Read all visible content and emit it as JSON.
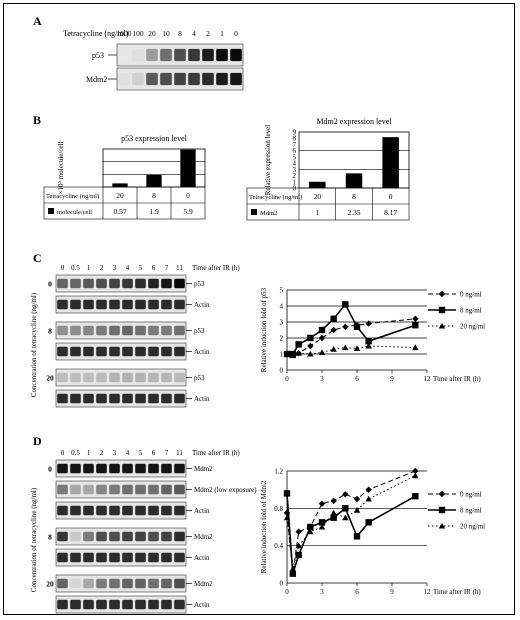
{
  "panels": {
    "A": "A",
    "B": "B",
    "C": "C",
    "D": "D"
  },
  "panelA": {
    "row_label": "Tetracycline (ng/ml)",
    "concentrations": [
      "1000",
      "100",
      "20",
      "10",
      "8",
      "4",
      "2",
      "1",
      "0"
    ],
    "blots": [
      "p53",
      "Mdm2"
    ],
    "band_intensity": {
      "p53": [
        0.02,
        0.05,
        0.35,
        0.55,
        0.7,
        0.8,
        0.92,
        1.0,
        1.0
      ],
      "Mdm2": [
        0.05,
        0.12,
        0.65,
        0.7,
        0.75,
        0.78,
        0.85,
        0.92,
        0.95
      ]
    }
  },
  "panelC": {
    "lane_labels": [
      "0",
      "0.5",
      "1",
      "2",
      "3",
      "4",
      "5",
      "6",
      "7",
      "11"
    ],
    "time_label": "Time after IR (h)",
    "side_label": "Concentration of tetracycline (ng/ml)",
    "groups": [
      {
        "conc": "0",
        "blots": [
          {
            "label": "p53",
            "i": [
              0.6,
              0.6,
              0.65,
              0.7,
              0.75,
              0.8,
              0.85,
              0.9,
              0.95,
              1.0
            ]
          },
          {
            "label": "Actin",
            "i": [
              0.85,
              0.85,
              0.85,
              0.85,
              0.85,
              0.85,
              0.85,
              0.85,
              0.85,
              0.85
            ]
          }
        ]
      },
      {
        "conc": "8",
        "blots": [
          {
            "label": "p53",
            "i": [
              0.4,
              0.42,
              0.45,
              0.5,
              0.55,
              0.6,
              0.55,
              0.5,
              0.5,
              0.55
            ]
          },
          {
            "label": "Actin",
            "i": [
              0.85,
              0.85,
              0.85,
              0.85,
              0.85,
              0.85,
              0.85,
              0.85,
              0.85,
              0.85
            ]
          }
        ]
      },
      {
        "conc": "20",
        "blots": [
          {
            "label": "p53",
            "i": [
              0.2,
              0.2,
              0.2,
              0.22,
              0.24,
              0.26,
              0.25,
              0.24,
              0.24,
              0.22
            ]
          },
          {
            "label": "Actin",
            "i": [
              0.85,
              0.85,
              0.85,
              0.85,
              0.85,
              0.85,
              0.85,
              0.85,
              0.85,
              0.85
            ]
          }
        ]
      }
    ]
  },
  "panelD": {
    "lane_labels": [
      "0",
      "0.5",
      "1",
      "2",
      "3",
      "4",
      "5",
      "6",
      "7",
      "11"
    ],
    "time_label": "Time after IR (h)",
    "side_label": "Concentration of tetracycline (ng/ml)",
    "groups": [
      {
        "conc": "0",
        "blots": [
          {
            "label": "Mdm2",
            "i": [
              0.95,
              0.95,
              0.95,
              0.95,
              0.95,
              0.95,
              0.95,
              0.95,
              0.95,
              0.95
            ]
          },
          {
            "label": "Mdm2 (low exposure)",
            "i": [
              0.5,
              0.3,
              0.3,
              0.45,
              0.5,
              0.55,
              0.55,
              0.55,
              0.6,
              0.65
            ]
          },
          {
            "label": "Actin",
            "i": [
              0.85,
              0.85,
              0.85,
              0.85,
              0.85,
              0.85,
              0.85,
              0.85,
              0.85,
              0.85
            ]
          }
        ]
      },
      {
        "conc": "8",
        "blots": [
          {
            "label": "Mdm2",
            "i": [
              0.8,
              0.15,
              0.5,
              0.7,
              0.7,
              0.75,
              0.75,
              0.7,
              0.75,
              0.85
            ]
          },
          {
            "label": "Actin",
            "i": [
              0.85,
              0.85,
              0.85,
              0.85,
              0.85,
              0.85,
              0.85,
              0.85,
              0.85,
              0.85
            ]
          }
        ]
      },
      {
        "conc": "20",
        "blots": [
          {
            "label": "Mdm2",
            "i": [
              0.6,
              0.1,
              0.3,
              0.5,
              0.55,
              0.6,
              0.6,
              0.55,
              0.6,
              0.7
            ]
          },
          {
            "label": "Actin",
            "i": [
              0.85,
              0.85,
              0.85,
              0.85,
              0.85,
              0.85,
              0.85,
              0.85,
              0.85,
              0.85
            ]
          }
        ]
      }
    ]
  },
  "chart_data": [
    {
      "id": "p53-bar",
      "type": "bar",
      "title": "p53 expression level",
      "ylabel": "×10⁵ molecule/cell",
      "ylim": [
        0,
        6
      ],
      "yticks": [],
      "categories": [
        "20",
        "8",
        "0"
      ],
      "values": [
        0.57,
        1.9,
        5.9
      ],
      "table_row_label": "Tetracycline (ng/ml)",
      "legend": "molecule/cell",
      "value_labels": [
        "0.57",
        "1.9",
        "5.9"
      ],
      "grid": true
    },
    {
      "id": "mdm2-bar",
      "type": "bar",
      "title": "Mdm2 expression level",
      "ylabel": "Relative expression level",
      "ylim": [
        0,
        9
      ],
      "yticks": [
        "0",
        "1",
        "2",
        "3",
        "4",
        "5",
        "6",
        "7",
        "8",
        "9"
      ],
      "categories": [
        "20",
        "8",
        "0"
      ],
      "values": [
        1,
        2.35,
        8.17
      ],
      "table_row_label": "Tetracycline (ng/ml)",
      "legend": "Mdm2",
      "value_labels": [
        "1",
        "2.35",
        "8.17"
      ],
      "grid": true
    },
    {
      "id": "p53-line",
      "type": "line",
      "ylabel": "Relative induction fold of p53",
      "xlabel": "Time after IR (h)",
      "xlim": [
        0,
        12
      ],
      "ylim": [
        0,
        5
      ],
      "xticks": [
        "0",
        "3",
        "6",
        "9",
        "12"
      ],
      "yticks": [
        "0",
        "1",
        "2",
        "3",
        "4",
        "5"
      ],
      "grid": true,
      "legend_position": "right",
      "series": [
        {
          "name": "0 ng/ml",
          "marker": "diamond",
          "dash": "5,3",
          "x": [
            0,
            0.5,
            1,
            2,
            3,
            4,
            5,
            6,
            7,
            11
          ],
          "y": [
            1,
            0.95,
            1.05,
            1.5,
            2.0,
            2.5,
            2.7,
            2.8,
            2.9,
            3.2
          ]
        },
        {
          "name": "8 ng/ml",
          "marker": "square",
          "dash": "",
          "x": [
            0,
            0.5,
            1,
            2,
            3,
            4,
            5,
            6,
            7,
            11
          ],
          "y": [
            1,
            1.0,
            1.6,
            2.0,
            2.5,
            3.2,
            4.1,
            2.7,
            1.8,
            2.8
          ]
        },
        {
          "name": "20 ng/ml",
          "marker": "triangle",
          "dash": "1.5,2.5",
          "x": [
            0,
            0.5,
            1,
            2,
            3,
            4,
            5,
            6,
            7,
            11
          ],
          "y": [
            1,
            0.9,
            1.05,
            1.0,
            1.1,
            1.3,
            1.4,
            1.35,
            1.5,
            1.4
          ]
        }
      ]
    },
    {
      "id": "mdm2-line",
      "type": "line",
      "ylabel": "Relative induction fold of Mdm2",
      "xlabel": "Time after IR (h)",
      "xlim": [
        0,
        12
      ],
      "ylim": [
        0,
        1.2
      ],
      "xticks": [
        "0",
        "3",
        "6",
        "9",
        "12"
      ],
      "yticks": [
        "0",
        "0.4",
        "0.8",
        "1.2"
      ],
      "grid": true,
      "legend_position": "right",
      "series": [
        {
          "name": "0 ng/ml",
          "marker": "diamond",
          "dash": "5,3",
          "x": [
            0,
            0.5,
            1,
            2,
            3,
            4,
            5,
            6,
            7,
            11
          ],
          "y": [
            0.75,
            0.1,
            0.55,
            0.6,
            0.85,
            0.88,
            0.95,
            0.9,
            1.0,
            1.2
          ]
        },
        {
          "name": "8 ng/ml",
          "marker": "square",
          "dash": "",
          "x": [
            0,
            0.5,
            1,
            2,
            3,
            4,
            5,
            6,
            7,
            11
          ],
          "y": [
            0.96,
            0.1,
            0.3,
            0.6,
            0.65,
            0.7,
            0.8,
            0.5,
            0.65,
            0.93
          ]
        },
        {
          "name": "20 ng/ml",
          "marker": "triangle",
          "dash": "1.5,2.5",
          "x": [
            0,
            0.5,
            1,
            2,
            3,
            4,
            5,
            6,
            7,
            11
          ],
          "y": [
            0.7,
            0.15,
            0.4,
            0.55,
            0.6,
            0.75,
            0.7,
            0.78,
            0.9,
            1.15
          ]
        }
      ]
    }
  ]
}
